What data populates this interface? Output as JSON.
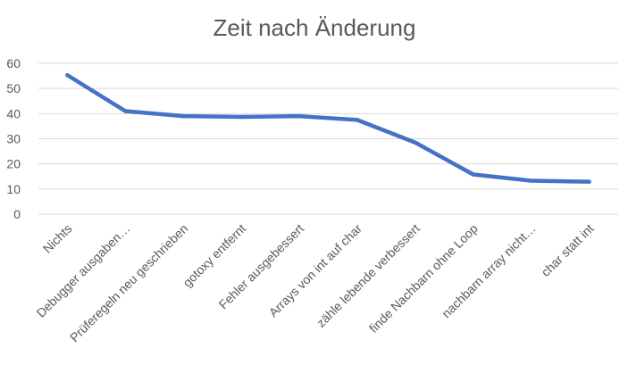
{
  "chart_data": {
    "type": "line",
    "title": "Zeit nach Änderung",
    "xlabel": "",
    "ylabel": "",
    "categories": [
      "Nichts",
      "Debugger ausgaben…",
      "Prüferegeln neu geschrieben",
      "gotoxy entfernt",
      "Fehler ausgebessert",
      "Arrays von int auf char",
      "zähle lebende verbessert",
      "finde Nachbarn ohne Loop",
      "nachbarn array nicht…",
      "char statt int"
    ],
    "series": [
      {
        "values": [
          55.3,
          41.0,
          39.0,
          38.7,
          39.0,
          37.5,
          28.5,
          15.8,
          13.3,
          12.9
        ],
        "color": "#4472c4"
      }
    ],
    "ylim": [
      0,
      60
    ],
    "yticks": [
      0,
      10,
      20,
      30,
      40,
      50,
      60
    ],
    "grid": true,
    "legend": "none"
  }
}
